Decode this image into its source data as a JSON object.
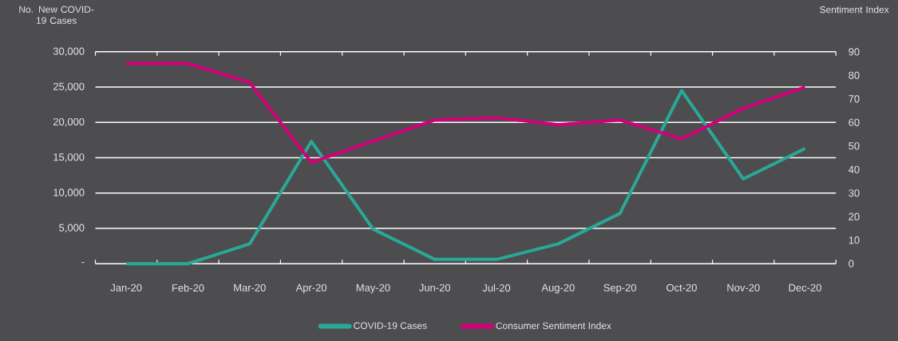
{
  "chart_data": {
    "type": "line",
    "ylabel": "No. New COVID-19 Cases",
    "y2label": "Sentiment Index",
    "categories": [
      "Jan-20",
      "Feb-20",
      "Mar-20",
      "Apr-20",
      "May-20",
      "Jun-20",
      "Jul-20",
      "Aug-20",
      "Sep-20",
      "Oct-20",
      "Nov-20",
      "Dec-20"
    ],
    "series": [
      {
        "name": "COVID-19 Cases",
        "color": "#2aa897",
        "values": [
          0,
          0,
          2800,
          17300,
          4900,
          600,
          600,
          2800,
          7100,
          24500,
          12000,
          16300
        ]
      },
      {
        "name": "Consumer Sentiment Index",
        "color": "#d4007a",
        "axis": "y2",
        "values": [
          85,
          85,
          77,
          43,
          52,
          61,
          62,
          59,
          61,
          53,
          66,
          75
        ]
      }
    ],
    "ylim": [
      0,
      30000
    ],
    "yticks": [
      {
        "value": 0,
        "label": "-"
      },
      {
        "value": 5000,
        "label": "5,000"
      },
      {
        "value": 10000,
        "label": "10,000"
      },
      {
        "value": 15000,
        "label": "15,000"
      },
      {
        "value": 20000,
        "label": "20,000"
      },
      {
        "value": 25000,
        "label": "25,000"
      },
      {
        "value": 30000,
        "label": "30,000"
      }
    ],
    "y2lim": [
      0,
      90
    ],
    "y2ticks": [
      0,
      10,
      20,
      30,
      40,
      50,
      60,
      70,
      80,
      90
    ],
    "grid": "y",
    "legend": "bottom",
    "marker": "none",
    "line_style": "solid"
  }
}
